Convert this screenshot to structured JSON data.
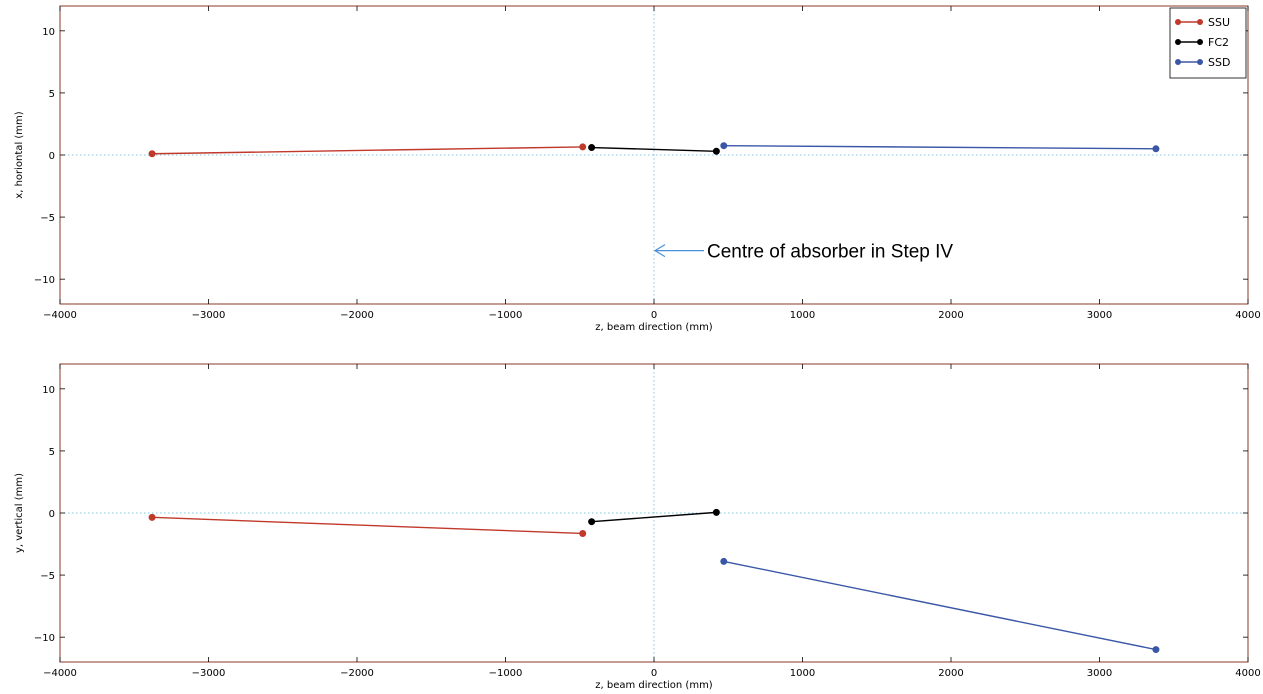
{
  "chart_data": [
    {
      "type": "line",
      "xlabel": "z, beam direction (mm)",
      "ylabel": "x, horiontal (mm)",
      "xlim": [
        -4000,
        4000
      ],
      "ylim": [
        -12,
        12
      ],
      "xticks": [
        -4000,
        -3000,
        -2000,
        -1000,
        0,
        1000,
        2000,
        3000,
        4000
      ],
      "yticks": [
        -10,
        -5,
        0,
        5,
        10
      ],
      "grid": false,
      "reference_lines": {
        "x": 0,
        "y": 0,
        "style": "dotted",
        "color": "#86c5de"
      },
      "legend": {
        "position": "top-right"
      },
      "annotation": {
        "text": "Centre of absorber in Step IV",
        "arrow_to": [
          0,
          -7.7
        ]
      },
      "series": [
        {
          "name": "SSU",
          "color": "#c0392b",
          "x": [
            -3380,
            -480
          ],
          "y": [
            0.1,
            0.65
          ]
        },
        {
          "name": "FC2",
          "color": "#000000",
          "x": [
            -420,
            420
          ],
          "y": [
            0.6,
            0.3
          ]
        },
        {
          "name": "SSD",
          "color": "#3a57a7",
          "x": [
            470,
            3380
          ],
          "y": [
            0.75,
            0.5
          ]
        }
      ]
    },
    {
      "type": "line",
      "xlabel": "z, beam direction (mm)",
      "ylabel": "y, vertical (mm)",
      "xlim": [
        -4000,
        4000
      ],
      "ylim": [
        -12,
        12
      ],
      "xticks": [
        -4000,
        -3000,
        -2000,
        -1000,
        0,
        1000,
        2000,
        3000,
        4000
      ],
      "yticks": [
        -10,
        -5,
        0,
        5,
        10
      ],
      "grid": false,
      "reference_lines": {
        "x": 0,
        "y": 0,
        "style": "dotted",
        "color": "#86c5de"
      },
      "series": [
        {
          "name": "SSU",
          "color": "#c0392b",
          "x": [
            -3380,
            -480
          ],
          "y": [
            -0.35,
            -1.65
          ]
        },
        {
          "name": "FC2",
          "color": "#000000",
          "x": [
            -420,
            420
          ],
          "y": [
            -0.7,
            0.05
          ]
        },
        {
          "name": "SSD",
          "color": "#3a57a7",
          "x": [
            470,
            3380
          ],
          "y": [
            -3.9,
            -11.0
          ]
        }
      ]
    }
  ]
}
